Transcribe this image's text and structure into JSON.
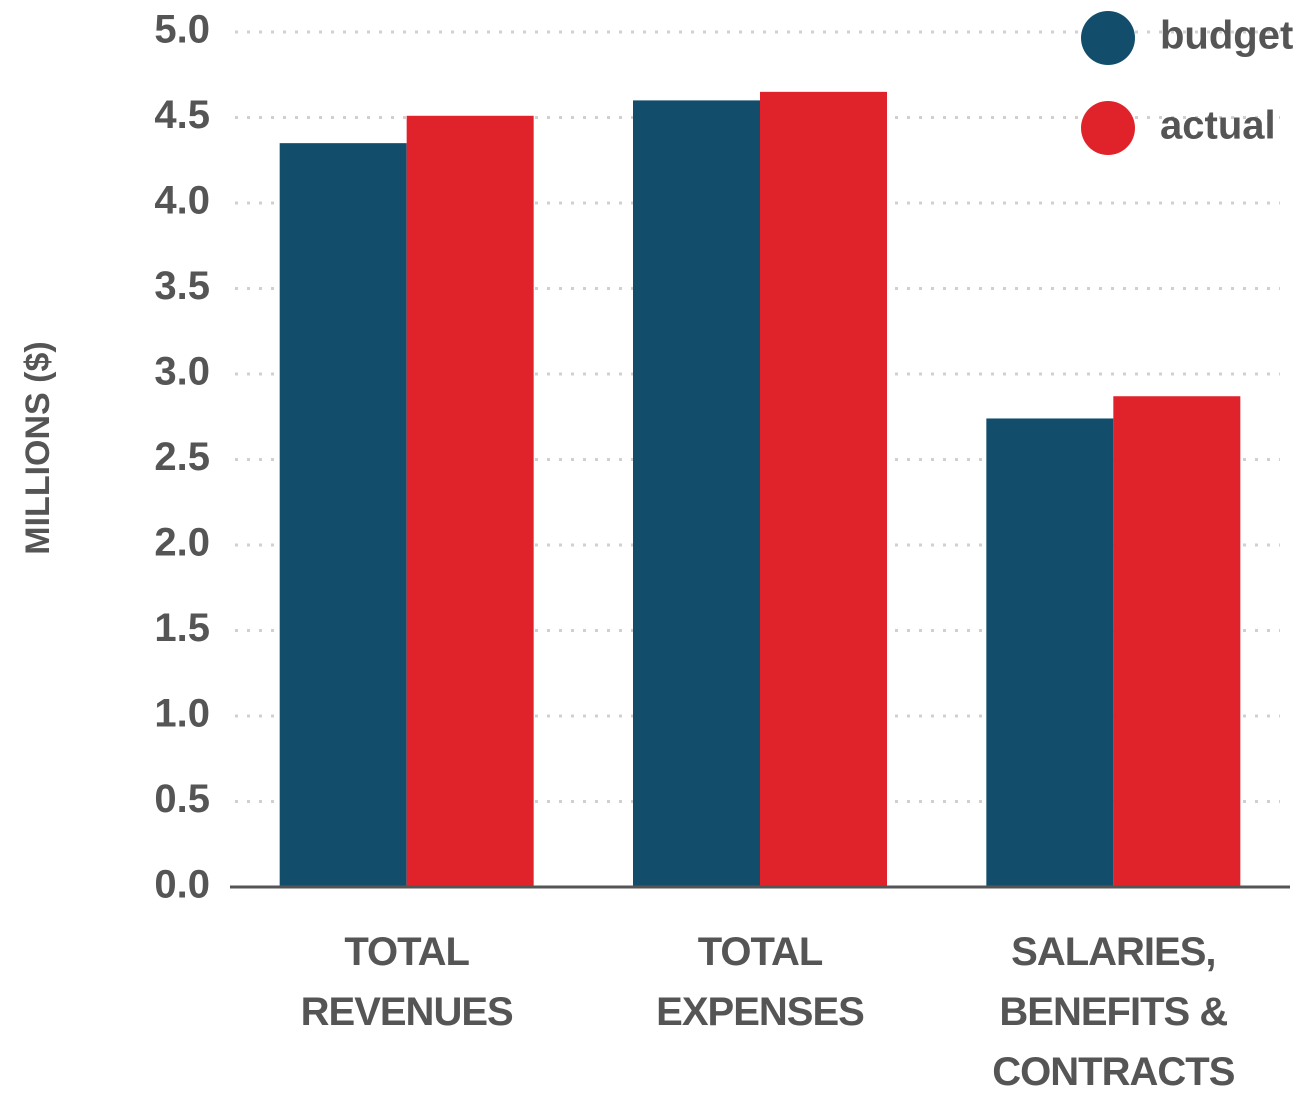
{
  "chart_data": {
    "type": "bar",
    "y_label": "MILLIONS ($)",
    "categories": [
      "TOTAL\nREVENUES",
      "TOTAL\nEXPENSES",
      "SALARIES,\nBENEFITS &\nCONTRACTS"
    ],
    "series": [
      {
        "name": "budget",
        "color": "#124e6b",
        "values": [
          4.35,
          4.6,
          2.74
        ]
      },
      {
        "name": "actual",
        "color": "#e0232b",
        "values": [
          4.51,
          4.65,
          2.87
        ]
      }
    ],
    "ylim": [
      0,
      5
    ],
    "yticks": [
      {
        "value": 0,
        "label": "0.0"
      },
      0.5,
      {
        "value": 1,
        "label": "1.0"
      },
      1.5,
      {
        "value": 2,
        "label": "2.0"
      },
      2.5,
      {
        "value": 3,
        "label": "3.0"
      },
      3.5,
      {
        "value": 4,
        "label": "4.0"
      },
      4.5,
      {
        "value": 5,
        "label": "5.0"
      }
    ],
    "grid": true,
    "legend": "top-right"
  }
}
